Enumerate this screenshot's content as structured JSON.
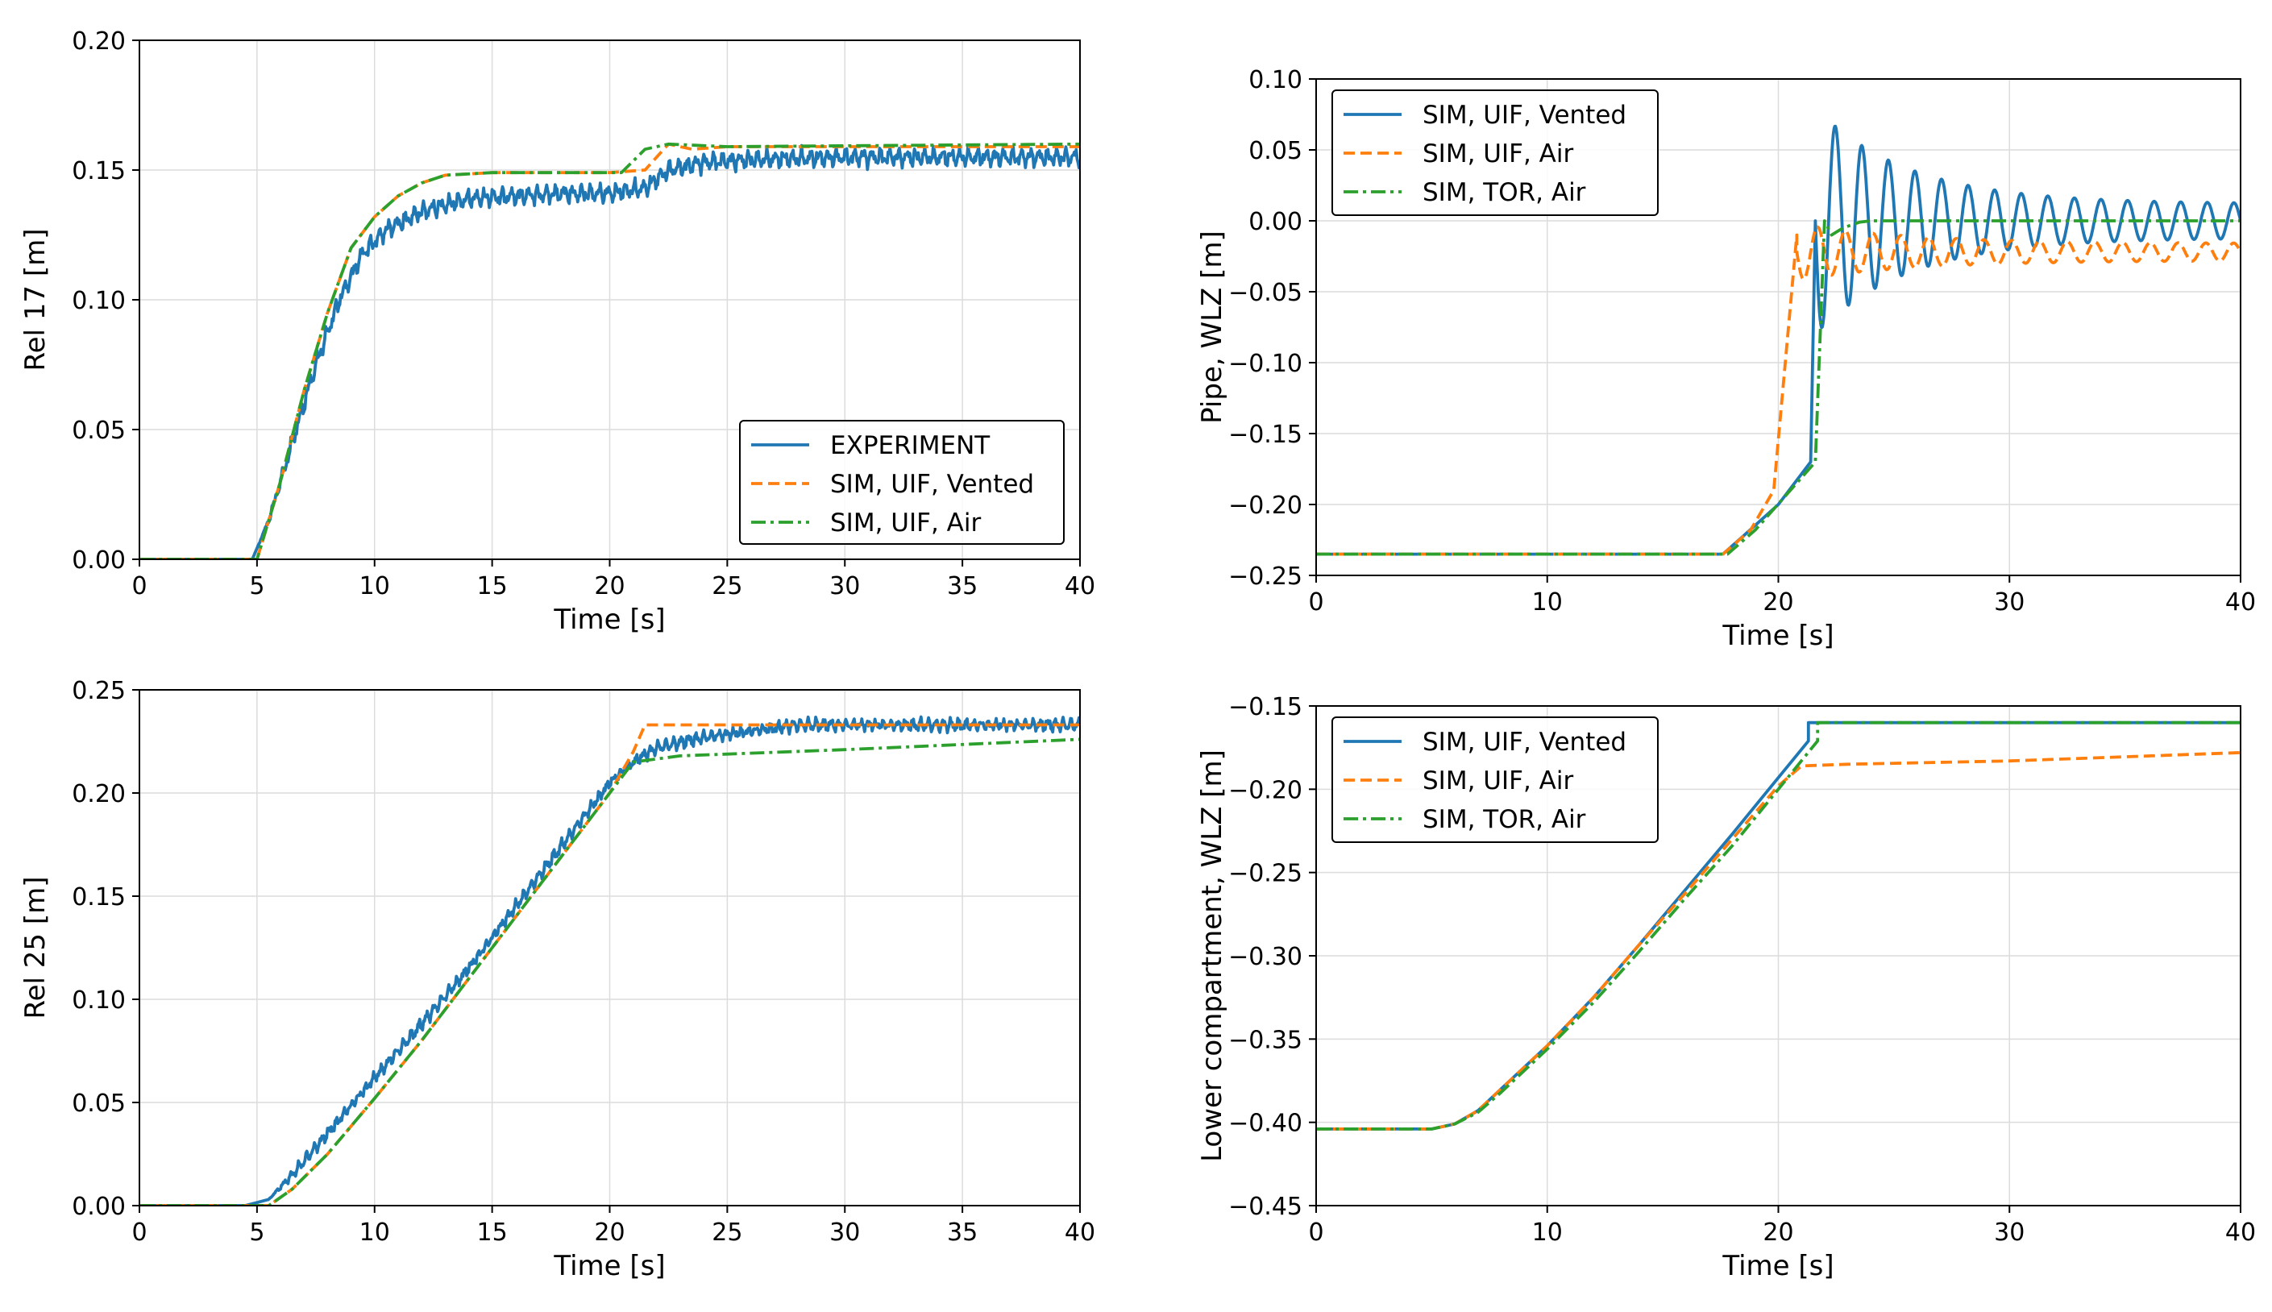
{
  "colors": {
    "blue": "#1f77b4",
    "orange": "#ff7f0e",
    "green": "#2ca02c",
    "grid": "#dcdcdc"
  },
  "chart_data": [
    {
      "type": "line",
      "id": "rel17",
      "xlabel": "Time [s]",
      "ylabel": "Rel 17 [m]",
      "xlim": [
        0,
        40
      ],
      "ylim": [
        0,
        0.2
      ],
      "xticks": [
        0,
        5,
        10,
        15,
        20,
        25,
        30,
        35,
        40
      ],
      "yticks": [
        0,
        0.05,
        0.1,
        0.15,
        0.2
      ],
      "xtick_labels": [
        "0",
        "5",
        "10",
        "15",
        "20",
        "25",
        "30",
        "35",
        "40"
      ],
      "ytick_labels": [
        "0.00",
        "0.05",
        "0.10",
        "0.15",
        "0.20"
      ],
      "legend_position": "lower-right",
      "series": [
        {
          "name": "EXPERIMENT",
          "color": "blue",
          "style": "solid",
          "noise": 0.004,
          "noise_start": 5,
          "noise_end": 40,
          "noise_freq": 2.3,
          "points": [
            [
              0,
              0
            ],
            [
              4.8,
              0
            ],
            [
              5.5,
              0.015
            ],
            [
              6.5,
              0.045
            ],
            [
              7.5,
              0.075
            ],
            [
              8.5,
              0.1
            ],
            [
              9.5,
              0.118
            ],
            [
              10.5,
              0.127
            ],
            [
              12,
              0.134
            ],
            [
              14,
              0.139
            ],
            [
              16,
              0.14
            ],
            [
              18,
              0.141
            ],
            [
              20,
              0.141
            ],
            [
              21.5,
              0.143
            ],
            [
              22.5,
              0.15
            ],
            [
              24,
              0.153
            ],
            [
              26,
              0.154
            ],
            [
              30,
              0.155
            ],
            [
              35,
              0.155
            ],
            [
              40,
              0.155
            ]
          ]
        },
        {
          "name": "SIM, UIF, Vented",
          "color": "orange",
          "style": "dashed",
          "points": [
            [
              0,
              0
            ],
            [
              5,
              0
            ],
            [
              6,
              0.03
            ],
            [
              7,
              0.065
            ],
            [
              8,
              0.095
            ],
            [
              9,
              0.12
            ],
            [
              10,
              0.132
            ],
            [
              11,
              0.14
            ],
            [
              12,
              0.145
            ],
            [
              13,
              0.148
            ],
            [
              15,
              0.149
            ],
            [
              20,
              0.149
            ],
            [
              21.5,
              0.15
            ],
            [
              22.5,
              0.16
            ],
            [
              23.5,
              0.158
            ],
            [
              25,
              0.159
            ],
            [
              40,
              0.159
            ]
          ]
        },
        {
          "name": "SIM, UIF, Air",
          "color": "green",
          "style": "dashdot",
          "points": [
            [
              0,
              0
            ],
            [
              5,
              0
            ],
            [
              6,
              0.03
            ],
            [
              7,
              0.065
            ],
            [
              8,
              0.095
            ],
            [
              9,
              0.12
            ],
            [
              10,
              0.132
            ],
            [
              11,
              0.14
            ],
            [
              12,
              0.145
            ],
            [
              13,
              0.148
            ],
            [
              15,
              0.149
            ],
            [
              20.5,
              0.149
            ],
            [
              21.5,
              0.158
            ],
            [
              22.5,
              0.16
            ],
            [
              25,
              0.159
            ],
            [
              40,
              0.16
            ]
          ]
        }
      ]
    },
    {
      "type": "line",
      "id": "pipe",
      "xlabel": "Time [s]",
      "ylabel": "Pipe, WLZ [m]",
      "xlim": [
        0,
        40
      ],
      "ylim": [
        -0.25,
        0.1
      ],
      "xticks": [
        0,
        10,
        20,
        30,
        40
      ],
      "yticks": [
        -0.25,
        -0.2,
        -0.15,
        -0.1,
        -0.05,
        0,
        0.05,
        0.1
      ],
      "xtick_labels": [
        "0",
        "10",
        "20",
        "30",
        "40"
      ],
      "ytick_labels": [
        "−0.25",
        "−0.20",
        "−0.15",
        "−0.10",
        "−0.05",
        "0.00",
        "0.05",
        "0.10"
      ],
      "legend_position": "upper-left",
      "series": [
        {
          "name": "SIM, UIF, Vented",
          "color": "blue",
          "style": "solid",
          "osc": {
            "start": 21.6,
            "end": 40,
            "period": 1.15,
            "amp0": 0.08,
            "amp1": 0.012,
            "decay": 4,
            "offset": 0
          },
          "points": [
            [
              0,
              -0.235
            ],
            [
              17.6,
              -0.235
            ],
            [
              18.5,
              -0.222
            ],
            [
              20,
              -0.2
            ],
            [
              21.4,
              -0.17
            ],
            [
              21.6,
              0
            ]
          ]
        },
        {
          "name": "SIM, UIF, Air",
          "color": "orange",
          "style": "dashed",
          "osc": {
            "start": 20.8,
            "end": 40,
            "period": 1.2,
            "amp0": 0.02,
            "amp1": 0.006,
            "decay": 5,
            "offset": -0.022
          },
          "points": [
            [
              0,
              -0.235
            ],
            [
              17.6,
              -0.235
            ],
            [
              18.8,
              -0.218
            ],
            [
              19.8,
              -0.19
            ],
            [
              20.3,
              -0.1
            ],
            [
              20.8,
              -0.01
            ]
          ]
        },
        {
          "name": "SIM, TOR, Air",
          "color": "green",
          "style": "dashdot",
          "points": [
            [
              0,
              -0.235
            ],
            [
              17.8,
              -0.235
            ],
            [
              19,
              -0.218
            ],
            [
              21.6,
              -0.17
            ],
            [
              22,
              0
            ],
            [
              22.3,
              -0.01
            ],
            [
              22.8,
              -0.005
            ],
            [
              23.5,
              -0.001
            ],
            [
              24,
              0
            ],
            [
              40,
              0
            ]
          ]
        }
      ]
    },
    {
      "type": "line",
      "id": "rel25",
      "xlabel": "Time [s]",
      "ylabel": "Rel 25 [m]",
      "xlim": [
        0,
        40
      ],
      "ylim": [
        0,
        0.25
      ],
      "xticks": [
        0,
        5,
        10,
        15,
        20,
        25,
        30,
        35,
        40
      ],
      "yticks": [
        0,
        0.05,
        0.1,
        0.15,
        0.2,
        0.25
      ],
      "xtick_labels": [
        "0",
        "5",
        "10",
        "15",
        "20",
        "25",
        "30",
        "35",
        "40"
      ],
      "ytick_labels": [
        "0.00",
        "0.05",
        "0.10",
        "0.15",
        "0.20",
        "0.25"
      ],
      "legend_position": "none",
      "series": [
        {
          "name": "EXPERIMENT",
          "color": "blue",
          "style": "solid",
          "noise": 0.0035,
          "noise_start": 5.5,
          "noise_end": 40,
          "noise_freq": 2.7,
          "points": [
            [
              0,
              0
            ],
            [
              4.5,
              0
            ],
            [
              5.5,
              0.003
            ],
            [
              6.5,
              0.015
            ],
            [
              8,
              0.035
            ],
            [
              10,
              0.062
            ],
            [
              12,
              0.088
            ],
            [
              14,
              0.115
            ],
            [
              16,
              0.145
            ],
            [
              18,
              0.175
            ],
            [
              20,
              0.205
            ],
            [
              21,
              0.215
            ],
            [
              22,
              0.222
            ],
            [
              24,
              0.227
            ],
            [
              26,
              0.23
            ],
            [
              28,
              0.233
            ],
            [
              40,
              0.233
            ]
          ]
        },
        {
          "name": "SIM, UIF, Vented",
          "color": "orange",
          "style": "dashed",
          "points": [
            [
              0,
              0
            ],
            [
              5.5,
              0
            ],
            [
              6.5,
              0.008
            ],
            [
              8,
              0.025
            ],
            [
              10,
              0.052
            ],
            [
              12,
              0.08
            ],
            [
              14,
              0.11
            ],
            [
              16,
              0.14
            ],
            [
              18,
              0.17
            ],
            [
              20,
              0.2
            ],
            [
              21,
              0.22
            ],
            [
              21.5,
              0.233
            ],
            [
              40,
              0.233
            ]
          ]
        },
        {
          "name": "SIM, UIF, Air",
          "color": "green",
          "style": "dashdot",
          "points": [
            [
              0,
              0
            ],
            [
              5.5,
              0
            ],
            [
              6.5,
              0.008
            ],
            [
              8,
              0.025
            ],
            [
              10,
              0.052
            ],
            [
              12,
              0.08
            ],
            [
              14,
              0.11
            ],
            [
              16,
              0.14
            ],
            [
              18,
              0.17
            ],
            [
              20,
              0.2
            ],
            [
              21,
              0.215
            ],
            [
              23,
              0.218
            ],
            [
              30,
              0.221
            ],
            [
              40,
              0.226
            ]
          ]
        }
      ]
    },
    {
      "type": "line",
      "id": "lower",
      "xlabel": "Time [s]",
      "ylabel": "Lower compartment, WLZ [m]",
      "xlim": [
        0,
        40
      ],
      "ylim": [
        -0.45,
        -0.15
      ],
      "xticks": [
        0,
        10,
        20,
        30,
        40
      ],
      "yticks": [
        -0.45,
        -0.4,
        -0.35,
        -0.3,
        -0.25,
        -0.2,
        -0.15
      ],
      "xtick_labels": [
        "0",
        "10",
        "20",
        "30",
        "40"
      ],
      "ytick_labels": [
        "−0.45",
        "−0.40",
        "−0.35",
        "−0.30",
        "−0.25",
        "−0.20",
        "−0.15"
      ],
      "legend_position": "upper-left",
      "series": [
        {
          "name": "SIM, UIF, Vented",
          "color": "blue",
          "style": "solid",
          "points": [
            [
              0,
              -0.404
            ],
            [
              5,
              -0.404
            ],
            [
              6,
              -0.401
            ],
            [
              7,
              -0.393
            ],
            [
              8,
              -0.38
            ],
            [
              10,
              -0.354
            ],
            [
              12,
              -0.325
            ],
            [
              14,
              -0.293
            ],
            [
              16,
              -0.26
            ],
            [
              18,
              -0.227
            ],
            [
              20,
              -0.193
            ],
            [
              21.3,
              -0.171
            ],
            [
              21.3,
              -0.16
            ],
            [
              40,
              -0.16
            ]
          ]
        },
        {
          "name": "SIM, UIF, Air",
          "color": "orange",
          "style": "dashed",
          "points": [
            [
              0,
              -0.404
            ],
            [
              5,
              -0.404
            ],
            [
              6,
              -0.401
            ],
            [
              7,
              -0.393
            ],
            [
              8,
              -0.38
            ],
            [
              10,
              -0.354
            ],
            [
              12,
              -0.325
            ],
            [
              14,
              -0.293
            ],
            [
              16,
              -0.262
            ],
            [
              18,
              -0.23
            ],
            [
              20,
              -0.198
            ],
            [
              21,
              -0.186
            ],
            [
              23,
              -0.185
            ],
            [
              30,
              -0.183
            ],
            [
              40,
              -0.178
            ]
          ]
        },
        {
          "name": "SIM, TOR, Air",
          "color": "green",
          "style": "dashdot",
          "points": [
            [
              0,
              -0.404
            ],
            [
              5,
              -0.404
            ],
            [
              6,
              -0.401
            ],
            [
              7,
              -0.394
            ],
            [
              8,
              -0.382
            ],
            [
              10,
              -0.356
            ],
            [
              12,
              -0.328
            ],
            [
              14,
              -0.297
            ],
            [
              16,
              -0.265
            ],
            [
              18,
              -0.234
            ],
            [
              20,
              -0.2
            ],
            [
              21.7,
              -0.171
            ],
            [
              21.7,
              -0.16
            ],
            [
              40,
              -0.16
            ]
          ]
        }
      ]
    }
  ]
}
